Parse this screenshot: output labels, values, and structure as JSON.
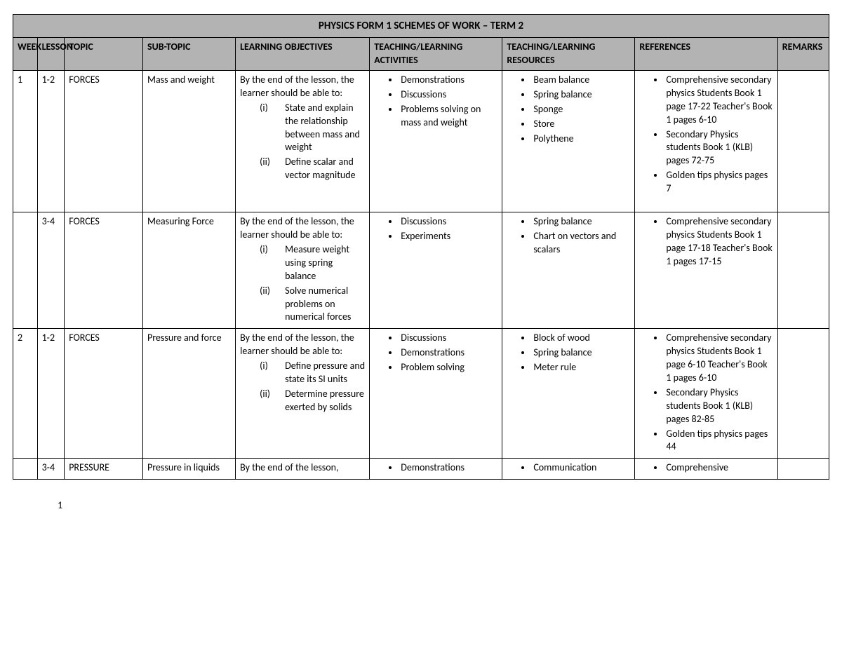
{
  "title": "PHYSICS FORM 1 SCHEMES OF WORK – TERM 2",
  "pageNumber": "1",
  "headers": {
    "week": "WEEK",
    "lesson": "LESSON",
    "topic": "TOPIC",
    "subtopic": "SUB-TOPIC",
    "objectives": "LEARNING OBJECTIVES",
    "activities": "TEACHING/LEARNING ACTIVITIES",
    "resources": "TEACHING/LEARNING RESOURCES",
    "references": "REFERENCES",
    "remarks": "REMARKS"
  },
  "rows": [
    {
      "week": "1",
      "lesson": "1-2",
      "topic": "FORCES",
      "subtopic": "Mass and weight",
      "obj_intro": "By the end of the lesson, the learner should be able to:",
      "objectives": [
        {
          "num": "(i)",
          "text": "State and explain the relationship between mass and weight"
        },
        {
          "num": "(ii)",
          "text": "Define scalar and vector magnitude"
        }
      ],
      "activities": [
        "Demonstrations",
        "Discussions",
        "Problems solving on mass and weight"
      ],
      "resources": [
        "Beam balance",
        "Spring balance",
        "Sponge",
        "Store",
        "Polythene"
      ],
      "references": [
        "Comprehensive secondary physics Students Book 1 page 17-22 Teacher's Book 1 pages 6-10",
        "Secondary Physics students Book 1 (KLB) pages 72-75",
        "Golden tips physics pages 7"
      ],
      "remarks": "",
      "extra_pad": true
    },
    {
      "week": "",
      "lesson": "3-4",
      "topic": "FORCES",
      "subtopic": "Measuring Force",
      "obj_intro": "By the end of the lesson, the learner should be able to:",
      "objectives": [
        {
          "num": "(i)",
          "text": "Measure weight using spring balance"
        },
        {
          "num": "(ii)",
          "text": "Solve numerical problems on numerical forces"
        }
      ],
      "activities": [
        "Discussions",
        "Experiments"
      ],
      "resources": [
        "Spring balance",
        "Chart on vectors and scalars"
      ],
      "references": [
        "Comprehensive secondary physics Students Book 1 page 17-18 Teacher's Book 1 pages 17-15"
      ],
      "remarks": "",
      "extra_pad": false
    },
    {
      "week": "2",
      "lesson": "1-2",
      "topic": "FORCES",
      "subtopic": "Pressure and force",
      "obj_intro": "By the end of the lesson, the learner should be able to:",
      "objectives": [
        {
          "num": "(i)",
          "text": "Define pressure and state its SI units"
        },
        {
          "num": "(ii)",
          "text": "Determine pressure exerted by solids"
        }
      ],
      "activities": [
        "Discussions",
        "Demonstrations",
        "Problem solving"
      ],
      "resources": [
        "Block of wood",
        "Spring balance",
        "Meter rule"
      ],
      "references": [
        "Comprehensive secondary physics Students Book 1 page 6-10 Teacher's Book 1 pages 6-10",
        "Secondary Physics students Book 1 (KLB) pages 82-85",
        "Golden tips physics pages 44"
      ],
      "remarks": "",
      "extra_pad": true
    },
    {
      "week": "",
      "lesson": "3-4",
      "topic": "PRESSURE",
      "subtopic": "Pressure in liquids",
      "obj_intro": "By the end of the lesson,",
      "objectives": [],
      "activities": [
        "Demonstrations"
      ],
      "resources": [
        "Communication"
      ],
      "references": [
        "Comprehensive"
      ],
      "remarks": "",
      "extra_pad": false
    }
  ]
}
